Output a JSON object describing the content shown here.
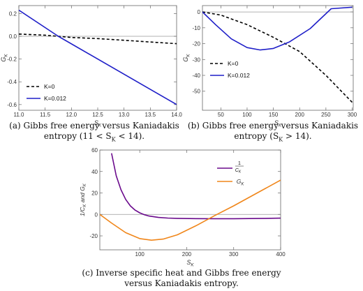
{
  "chart_data": [
    {
      "type": "line",
      "xlabel": "S_K",
      "ylabel": "G_K",
      "xlim": [
        11.0,
        14.0
      ],
      "ylim": [
        -0.65,
        0.27
      ],
      "xticks": [
        11.0,
        11.5,
        12.0,
        12.5,
        13.0,
        13.5,
        14.0
      ],
      "xtick_labels": [
        "11.0",
        "11.5",
        "12.0",
        "12.5",
        "13.0",
        "13.5",
        "14.0"
      ],
      "yticks": [
        0.2,
        0.0,
        -0.2,
        -0.4,
        -0.6
      ],
      "ytick_labels": [
        "0.2",
        "0.0",
        "-0.2",
        "-0.4",
        "-0.6"
      ],
      "zero_line": true,
      "legend_position": "bottom-left",
      "series": [
        {
          "name": "K=0",
          "style": "dashed",
          "color": "#000000",
          "x": [
            11.0,
            11.5,
            12.0,
            12.5,
            13.0,
            13.5,
            14.0
          ],
          "y": [
            0.02,
            0.01,
            -0.01,
            -0.02,
            -0.035,
            -0.05,
            -0.065
          ]
        },
        {
          "name": "K=0.012",
          "style": "solid",
          "color": "#1f1fc8",
          "x": [
            11.0,
            11.75,
            14.0
          ],
          "y": [
            0.23,
            0.0,
            -0.6
          ]
        }
      ],
      "caption_lines": [
        "(a) Gibbs free energy versus Kaniadakis",
        "entropy (11 < S",
        "K",
        " < 14)."
      ]
    },
    {
      "type": "line",
      "xlabel": "S_K",
      "ylabel": "G_K",
      "xlim": [
        15,
        302
      ],
      "ylim": [
        -62,
        4
      ],
      "xticks": [
        50,
        100,
        150,
        200,
        250,
        300
      ],
      "xtick_labels": [
        "50",
        "100",
        "150",
        "200",
        "250",
        "300"
      ],
      "yticks": [
        0,
        -10,
        -20,
        -30,
        -40,
        -50
      ],
      "ytick_labels": [
        "0",
        "-10",
        "-20",
        "-30",
        "-40",
        "-50"
      ],
      "zero_line": true,
      "legend_position": "lower-left",
      "series": [
        {
          "name": "K=0",
          "style": "dashed",
          "color": "#000000",
          "x": [
            15,
            50,
            100,
            150,
            200,
            250,
            300
          ],
          "y": [
            0,
            -2,
            -8,
            -16,
            -25,
            -40,
            -57
          ]
        },
        {
          "name": "K=0.012",
          "style": "solid",
          "color": "#1f1fc8",
          "x": [
            15,
            40,
            70,
            100,
            125,
            150,
            180,
            220,
            260,
            300
          ],
          "y": [
            0,
            -8,
            -17,
            -22.5,
            -24,
            -23,
            -19,
            -10.5,
            2,
            3
          ]
        }
      ],
      "caption_lines": [
        "(b) Gibbs free energy versus Kaniadakis",
        "entropy (S",
        "K",
        " > 14)."
      ]
    },
    {
      "type": "line",
      "xlabel": "S_K",
      "ylabel": "1/C_K and G_K",
      "xlim": [
        15,
        400
      ],
      "ylim": [
        -33,
        60
      ],
      "xticks": [
        100,
        200,
        300,
        400
      ],
      "xtick_labels": [
        "100",
        "200",
        "300",
        "400"
      ],
      "yticks": [
        60,
        40,
        20,
        0,
        -20
      ],
      "ytick_labels": [
        "60",
        "40",
        "20",
        "0",
        "-20"
      ],
      "zero_line": true,
      "legend_position": "top-right",
      "series": [
        {
          "name": "1/C_K",
          "style": "solid",
          "color": "#6a0a8c",
          "x": [
            40,
            50,
            60,
            70,
            80,
            90,
            100,
            110,
            120,
            140,
            160,
            180,
            220,
            260,
            300,
            350,
            400
          ],
          "y": [
            57,
            36,
            23,
            14,
            8,
            4,
            1.5,
            -0.3,
            -1.5,
            -2.8,
            -3.4,
            -3.7,
            -3.9,
            -4.0,
            -4.0,
            -3.8,
            -3.5
          ]
        },
        {
          "name": "G_K",
          "style": "solid",
          "color": "#f0861a",
          "x": [
            15,
            40,
            70,
            100,
            125,
            150,
            180,
            220,
            260,
            300,
            350,
            400
          ],
          "y": [
            0,
            -8,
            -17,
            -22.5,
            -24,
            -23,
            -19,
            -10.5,
            -1,
            8,
            20,
            32
          ]
        }
      ],
      "caption_lines": [
        "(c) Inverse specific heat and Gibbs free energy",
        "versus Kaniadakis entropy."
      ]
    }
  ]
}
